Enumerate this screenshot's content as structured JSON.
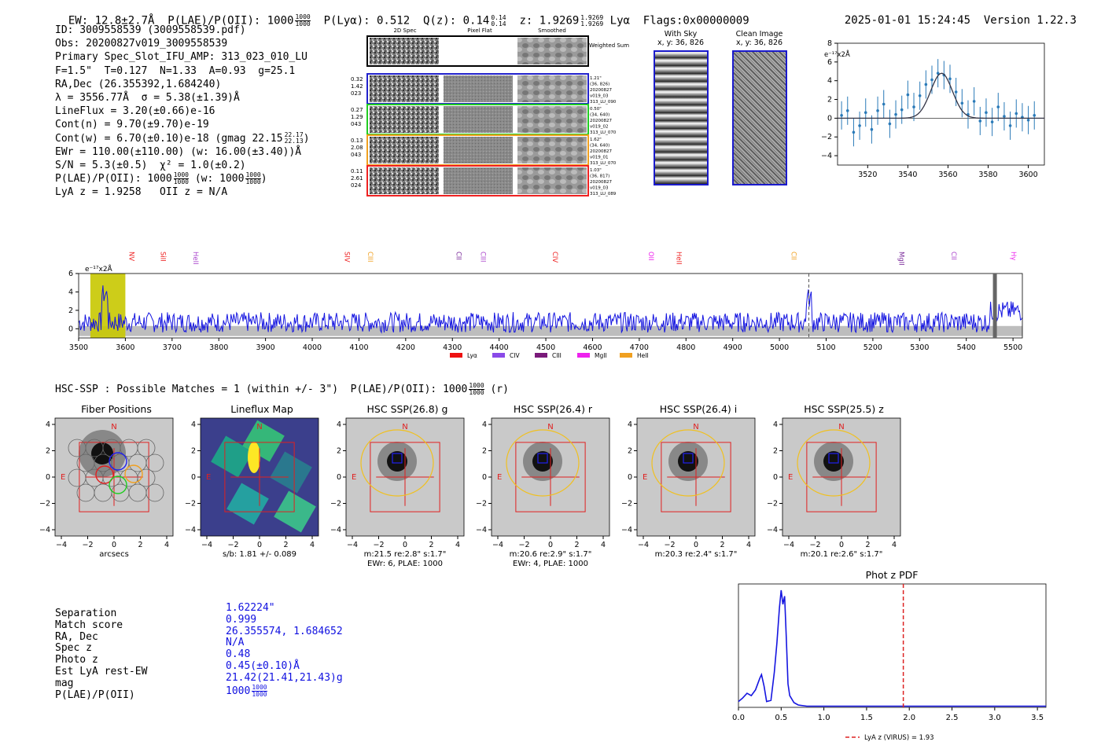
{
  "header": {
    "ew": "EW: 12.8±2.7Å",
    "plae_label": "P(LAE)/P(OII): 1000",
    "plae_num": "1000",
    "plae_den": "1000",
    "ply": "P(Lyα): 0.512",
    "qz_label": "Q(z): 0.14",
    "qz_num": "0.14",
    "qz_den": "0.14",
    "z_label": "z: 1.9269",
    "z_num": "1.9269",
    "z_den": "1.9269",
    "z_line": "Lyα",
    "flags": "Flags:0x00000009",
    "timestamp": "2025-01-01 15:24:45",
    "version": "Version 1.22.3"
  },
  "info": {
    "l1": "ID: 3009558539 (3009558539.pdf)",
    "l2": "Obs: 20200827v019_3009558539",
    "l3": "Primary Spec_Slot_IFU_AMP: 313_023_010_LU",
    "l4": "F=1.5\"  T=0.127  N=1.33  A=0.93  g=25.1",
    "l5": "RA,Dec (26.355392,1.684240)",
    "l6": "λ = 3556.77Å  σ = 5.38(±1.39)Å",
    "l7": "LineFlux = 3.20(±0.66)e-16",
    "l8": "Cont(n) = 9.70(±9.70)e-19",
    "l9": "Cont(w) = 6.70(±0.10)e-18 (gmag 22.15",
    "l9_num": "22.17",
    "l9_den": "22.13",
    "l9_end": ")",
    "l10": "EWr = 110.00(±110.00) (w: 16.00(±3.40))Å",
    "l11": "S/N = 5.3(±0.5)  χ² = 1.0(±0.2)",
    "l12": "P(LAE)/P(OII): 1000",
    "l12_num": "1000",
    "l12_den": "1000",
    "l12_mid": "(w: 1000",
    "l12_num2": "1000",
    "l12_den2": "1000",
    "l12_end": ")",
    "l13": "LyA z = 1.9258   OII z = N/A"
  },
  "cutouts": {
    "col_2d": "2D Spec",
    "col_flat": "Pixel Flat",
    "col_smooth": "Smoothed",
    "weighted": "Weighted Sum",
    "rows": [
      {
        "left": [
          "0.32",
          "1.42",
          "023"
        ],
        "right": [
          "1.21\"",
          "(36, 826)",
          "20200827",
          "v019_03",
          "313_LU_090"
        ],
        "color": "#2222cc"
      },
      {
        "left": [
          "0.27",
          "1.29",
          "043"
        ],
        "right": [
          "0.50\"",
          "(34, 640)",
          "20200827",
          "v019_02",
          "313_LU_070"
        ],
        "color": "#22cc22"
      },
      {
        "left": [
          "0.13",
          "2.08",
          "043"
        ],
        "right": [
          "1.62\"",
          "(34, 640)",
          "20200827",
          "v019_01",
          "313_LU_070"
        ],
        "color": "#f0a020"
      },
      {
        "left": [
          "0.11",
          "2.61",
          "024"
        ],
        "right": [
          "1.03\"",
          "(36, 817)",
          "20200827",
          "v019_03",
          "313_LU_089"
        ],
        "color": "#ee2222"
      }
    ],
    "with_sky_title": "With Sky",
    "with_sky_sub": "x, y: 36, 826",
    "clean_title": "Clean Image",
    "clean_sub": "x, y: 36, 826"
  },
  "zoom_chart": {
    "unit": "e⁻¹⁷x2Å",
    "x_ticks": [
      "3520",
      "3540",
      "3560",
      "3580",
      "3600"
    ],
    "y_ticks": [
      "8",
      "6",
      "4",
      "2",
      "0",
      "-2",
      "-4"
    ]
  },
  "chart_data": [
    {
      "type": "scatter",
      "title": "",
      "xlabel": "",
      "ylabel": "e-17 x2Å",
      "xlim": [
        3505,
        3608
      ],
      "ylim": [
        -5,
        8
      ],
      "x": [
        3507,
        3510,
        3513,
        3516,
        3519,
        3522,
        3525,
        3528,
        3531,
        3534,
        3537,
        3540,
        3543,
        3546,
        3549,
        3552,
        3555,
        3558,
        3561,
        3564,
        3567,
        3570,
        3573,
        3576,
        3579,
        3582,
        3585,
        3588,
        3591,
        3594,
        3597,
        3600,
        3603
      ],
      "y": [
        0.3,
        0.8,
        -1.5,
        -0.8,
        0.6,
        -1.2,
        0.8,
        1.5,
        -0.6,
        0.4,
        0.9,
        2.5,
        1.2,
        2.4,
        3.6,
        4.1,
        4.8,
        4.6,
        4.2,
        2.8,
        1.6,
        0.4,
        1.8,
        -0.3,
        0.6,
        -0.4,
        1.2,
        0.2,
        -0.8,
        0.5,
        0.1,
        -0.2,
        0.3
      ],
      "model": "gaussian fit centered 3556.8, amplitude ~4.8"
    },
    {
      "type": "line",
      "title": "",
      "xlabel": "",
      "ylabel": "e-17 x2Å",
      "xlim": [
        3500,
        5520
      ],
      "ylim": [
        -1,
        6
      ],
      "x_ticks": [
        3500,
        3600,
        3700,
        3800,
        3900,
        4000,
        4100,
        4200,
        4300,
        4400,
        4500,
        4600,
        4700,
        4800,
        4900,
        5000,
        5100,
        5200,
        5300,
        5400,
        5500
      ],
      "y_ticks": [
        0,
        2,
        4,
        6
      ],
      "line_markers": [
        {
          "name": "NV",
          "x": 3629,
          "color": "#ee2222"
        },
        {
          "name": "SiII",
          "x": 3696,
          "color": "#ee2222"
        },
        {
          "name": "HeII",
          "x": 3766,
          "color": "#aa44cc"
        },
        {
          "name": "SIV",
          "x": 4090,
          "color": "#ee2222"
        },
        {
          "name": "CIII",
          "x": 4140,
          "color": "#f0a020"
        },
        {
          "name": "CII",
          "x": 4329,
          "color": "#7a2a9a"
        },
        {
          "name": "CIII",
          "x": 4381,
          "color": "#aa44cc"
        },
        {
          "name": "CIV",
          "x": 4535,
          "color": "#ee2222"
        },
        {
          "name": "OII",
          "x": 4741,
          "color": "#ee22ee"
        },
        {
          "name": "HeII",
          "x": 4800,
          "color": "#ee2222"
        },
        {
          "name": "CII",
          "x": 5046,
          "color": "#f0a020"
        },
        {
          "name": "MgII",
          "x": 5277,
          "color": "#7a2a9a"
        },
        {
          "name": "CII",
          "x": 5389,
          "color": "#aa44cc"
        },
        {
          "name": "Hγ",
          "x": 5520,
          "color": "#ee22ee"
        }
      ],
      "legend": [
        "Lyα",
        "CIV",
        "CIII",
        "MgII",
        "HeII"
      ],
      "legend_colors": [
        "#ee1111",
        "#8a4ae8",
        "#7a1a7a",
        "#ee22ee",
        "#f0a020"
      ]
    },
    {
      "type": "line",
      "title": "Phot z PDF",
      "xlabel": "",
      "ylabel": "",
      "xlim": [
        0,
        3.6
      ],
      "ylim": [
        0,
        1
      ],
      "x_ticks": [
        "0.0",
        "0.5",
        "1.0",
        "1.5",
        "2.0",
        "2.5",
        "3.0",
        "3.5"
      ],
      "x": [
        0,
        0.05,
        0.1,
        0.15,
        0.2,
        0.25,
        0.27,
        0.3,
        0.33,
        0.38,
        0.42,
        0.45,
        0.48,
        0.5,
        0.52,
        0.54,
        0.56,
        0.58,
        0.6,
        0.65,
        0.7,
        0.8,
        1.0,
        2.0,
        3.6
      ],
      "y": [
        0.05,
        0.08,
        0.12,
        0.1,
        0.15,
        0.25,
        0.28,
        0.18,
        0.05,
        0.06,
        0.3,
        0.55,
        0.85,
        1.0,
        0.88,
        0.95,
        0.6,
        0.2,
        0.1,
        0.04,
        0.02,
        0.01,
        0.01,
        0.01,
        0.01
      ],
      "marker": {
        "x": 1.93,
        "style": "dashed",
        "color": "#dd2222"
      },
      "legend": "LyA z (VIRUS) = 1.93"
    }
  ],
  "match_title": "HSC-SSP : Possible Matches = 1 (within +/- 3\")  P(LAE)/P(OII): 1000",
  "match_title_num": "1000",
  "match_title_den": "1000",
  "match_title_end": "(r)",
  "panels": [
    {
      "title": "Fiber Positions",
      "cap1": "arcsecs",
      "cap2": ""
    },
    {
      "title": "Lineflux Map",
      "cap1": "s/b: 1.81 +/- 0.089",
      "cap2": ""
    },
    {
      "title": "HSC SSP(26.8) g",
      "cap1": "m:21.5  re:2.8\"  s:1.7\"",
      "cap2": "EWr: 6, PLAE: 1000"
    },
    {
      "title": "HSC SSP(26.4) r",
      "cap1": "m:20.6  re:2.9\"  s:1.7\"",
      "cap2": "EWr: 4, PLAE: 1000"
    },
    {
      "title": "HSC SSP(26.4) i",
      "cap1": "m:20.3  re:2.4\"  s:1.7\"",
      "cap2": ""
    },
    {
      "title": "HSC SSP(25.5) z",
      "cap1": "m:20.1  re:2.6\"  s:1.7\"",
      "cap2": ""
    }
  ],
  "panel_axis": {
    "ticks_x": [
      "−4",
      "−2",
      "0",
      "2",
      "4"
    ],
    "ticks_y": [
      "4",
      "2",
      "0",
      "−2",
      "−4"
    ],
    "n": "N",
    "e": "E"
  },
  "match_table": {
    "keys": [
      "Separation",
      "Match score",
      "RA, Dec",
      "Spec z",
      "Photo z",
      "Est LyA rest-EW",
      "mag",
      "P(LAE)/P(OII)"
    ],
    "vals": [
      "1.62224\"",
      "0.999",
      "26.355574, 1.684652",
      "N/A",
      "0.48",
      "0.45(±0.10)Å",
      "21.42(21.41,21.43)g",
      "1000"
    ],
    "plae_num": "1000",
    "plae_den": "1000"
  }
}
